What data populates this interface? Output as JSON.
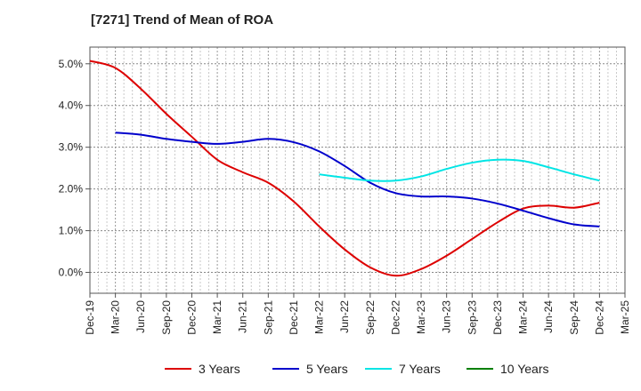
{
  "chart_data": {
    "type": "line",
    "title": "[7271]  Trend of Mean of ROA",
    "xlabel": "",
    "ylabel": "",
    "x_ticks": [
      "Dec-19",
      "Mar-20",
      "Jun-20",
      "Sep-20",
      "Dec-20",
      "Mar-21",
      "Jun-21",
      "Sep-21",
      "Dec-21",
      "Mar-22",
      "Jun-22",
      "Sep-22",
      "Dec-22",
      "Mar-23",
      "Jun-23",
      "Sep-23",
      "Dec-23",
      "Mar-24",
      "Jun-24",
      "Sep-24",
      "Dec-24",
      "Mar-25"
    ],
    "y_ticks": [
      "0.0%",
      "1.0%",
      "2.0%",
      "3.0%",
      "4.0%",
      "5.0%"
    ],
    "ylim": [
      -0.5,
      5.4
    ],
    "grid": true,
    "legend_position": "bottom",
    "series": [
      {
        "name": "3 Years",
        "color": "#dd0000",
        "x": [
          "Dec-19",
          "Mar-20",
          "Jun-20",
          "Sep-20",
          "Dec-20",
          "Mar-21",
          "Jun-21",
          "Sep-21",
          "Dec-21",
          "Mar-22",
          "Jun-22",
          "Sep-22",
          "Dec-22",
          "Mar-23",
          "Jun-23",
          "Sep-23",
          "Dec-23",
          "Mar-24",
          "Jun-24",
          "Sep-24",
          "Dec-24"
        ],
        "values": [
          5.07,
          4.9,
          4.4,
          3.8,
          3.25,
          2.7,
          2.4,
          2.15,
          1.7,
          1.1,
          0.55,
          0.12,
          -0.08,
          0.08,
          0.4,
          0.8,
          1.2,
          1.53,
          1.6,
          1.55,
          1.67
        ]
      },
      {
        "name": "5 Years",
        "color": "#0000cc",
        "x": [
          "Mar-20",
          "Jun-20",
          "Sep-20",
          "Dec-20",
          "Mar-21",
          "Jun-21",
          "Sep-21",
          "Dec-21",
          "Mar-22",
          "Jun-22",
          "Sep-22",
          "Dec-22",
          "Mar-23",
          "Jun-23",
          "Sep-23",
          "Dec-23",
          "Mar-24",
          "Jun-24",
          "Sep-24",
          "Dec-24"
        ],
        "values": [
          3.35,
          3.3,
          3.2,
          3.13,
          3.08,
          3.13,
          3.2,
          3.12,
          2.9,
          2.55,
          2.15,
          1.9,
          1.82,
          1.82,
          1.77,
          1.65,
          1.48,
          1.3,
          1.15,
          1.1
        ]
      },
      {
        "name": "7 Years",
        "color": "#00e5e5",
        "x": [
          "Mar-22",
          "Jun-22",
          "Sep-22",
          "Dec-22",
          "Mar-23",
          "Jun-23",
          "Sep-23",
          "Dec-23",
          "Mar-24",
          "Jun-24",
          "Sep-24",
          "Dec-24"
        ],
        "values": [
          2.35,
          2.27,
          2.2,
          2.2,
          2.3,
          2.48,
          2.63,
          2.7,
          2.67,
          2.52,
          2.35,
          2.2
        ]
      },
      {
        "name": "10 Years",
        "color": "#008000",
        "x": [],
        "values": []
      }
    ]
  }
}
